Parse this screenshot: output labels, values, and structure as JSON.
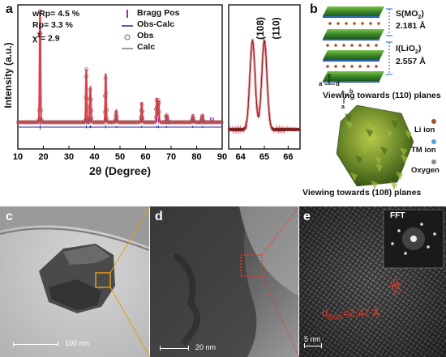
{
  "panels": {
    "a": "a",
    "b": "b",
    "c": "c",
    "d": "d",
    "e": "e"
  },
  "xrd": {
    "stats": {
      "wrp": "wRp= 4.5 %",
      "rp": "Rp= 3.3 %",
      "chi_prefix": "χ",
      "chi_sup": "2",
      "chi_value": "= 2.9"
    },
    "legend": {
      "bragg": "Bragg Pos",
      "obs_calc": "Obs-Calc",
      "obs": "Obs",
      "calc": "Calc"
    },
    "ylabel": "Intensity (a.u.)",
    "xlabel": "2θ (Degree)",
    "main_ticks": [
      "10",
      "20",
      "30",
      "40",
      "50",
      "60",
      "70",
      "80",
      "90"
    ],
    "inset_ticks": [
      "64",
      "65",
      "66"
    ],
    "inset_peaks": [
      "(108)",
      "(110)"
    ],
    "colors": {
      "obs": "#e23a48",
      "calc": "#333333",
      "diff": "#2a2a9a",
      "bragg": "#9c27b0"
    }
  },
  "chart_data": {
    "type": "line",
    "xlabel": "2θ (Degree)",
    "ylabel": "Intensity (a.u.)",
    "xlim": [
      10,
      90
    ],
    "series": [
      {
        "name": "Obs",
        "peaks": [
          [
            18.7,
            100
          ],
          [
            36.8,
            48
          ],
          [
            38.3,
            20
          ],
          [
            38.5,
            16
          ],
          [
            44.4,
            44
          ],
          [
            48.5,
            10
          ],
          [
            58.5,
            18
          ],
          [
            64.4,
            22
          ],
          [
            65.1,
            20
          ],
          [
            68.2,
            6
          ],
          [
            78.5,
            6
          ],
          [
            82.3,
            6
          ]
        ]
      },
      {
        "name": "Calc",
        "peaks": [
          [
            18.7,
            100
          ],
          [
            36.8,
            48
          ],
          [
            38.3,
            20
          ],
          [
            38.5,
            16
          ],
          [
            44.4,
            44
          ],
          [
            48.5,
            10
          ],
          [
            58.5,
            18
          ],
          [
            64.4,
            22
          ],
          [
            65.1,
            20
          ],
          [
            68.2,
            6
          ],
          [
            78.5,
            6
          ],
          [
            82.3,
            6
          ]
        ]
      },
      {
        "name": "Obs-Calc"
      }
    ],
    "bragg_positions": [
      18.7,
      36.8,
      38.3,
      38.5,
      44.4,
      48.5,
      58.5,
      59.0,
      64.4,
      65.1,
      68.2,
      69.0,
      78.5,
      81.5,
      82.3,
      85.5,
      86.5
    ],
    "inset": {
      "xlim": [
        63.5,
        66.5
      ],
      "peaks": [
        {
          "label": "(108)",
          "x": 64.5
        },
        {
          "label": "(110)",
          "x": 65.0
        }
      ]
    }
  },
  "structure": {
    "s_label": "S(MO",
    "s_sub": "2",
    "s_end": ")",
    "s_value": "2.181 Å",
    "i_label": "I(LiO",
    "i_sub": "2",
    "i_end": ")",
    "i_value": "2.557 Å",
    "axis_c": "c",
    "axis_a": "a",
    "axis_d": "d",
    "axis_b": "b",
    "view1": "Viewing towards (110) planes",
    "view2": "Viewing towards (108) planes",
    "legend": {
      "li": "Li ion",
      "tm": "TM ion",
      "ox": "Oxygen"
    }
  },
  "tem": {
    "c_scale": "100 nm",
    "d_scale": "20 nm",
    "e_scale": "5 nm",
    "fft": "FFT",
    "d_spacing_prefix": "d",
    "d_spacing_sub": "(003)",
    "d_spacing_value": "=2.47 Å"
  }
}
